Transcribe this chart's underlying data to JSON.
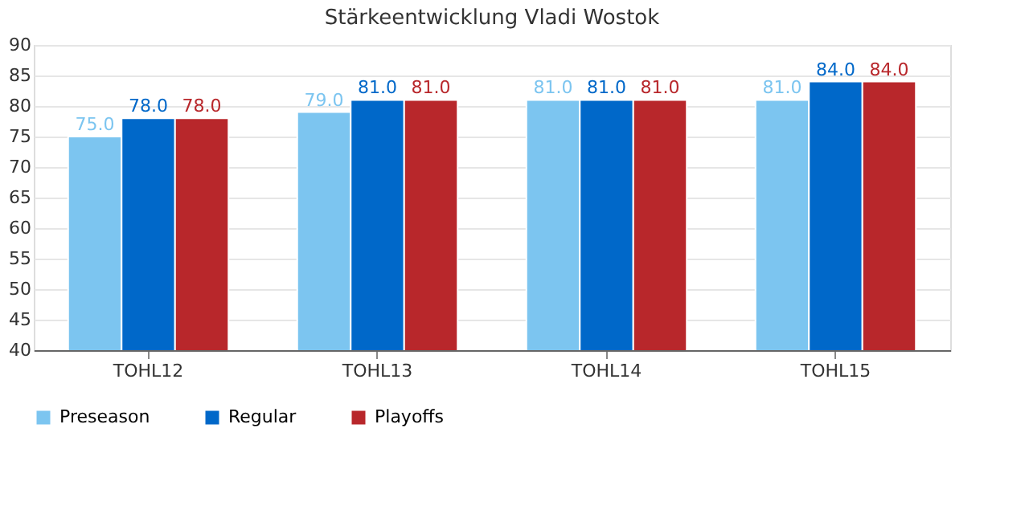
{
  "chart_data": {
    "type": "bar",
    "title": "Stärkeentwicklung Vladi Wostok",
    "categories": [
      "TOHL12",
      "TOHL13",
      "TOHL14",
      "TOHL15"
    ],
    "series": [
      {
        "name": "Preseason",
        "color": "#7cc5f0",
        "values": [
          75,
          79,
          81,
          81
        ],
        "value_labels": [
          "75.0",
          "79.0",
          "81.0",
          "81.0"
        ]
      },
      {
        "name": "Regular",
        "color": "#0068c9",
        "values": [
          78,
          81,
          81,
          84
        ],
        "value_labels": [
          "78.0",
          "81.0",
          "81.0",
          "84.0"
        ]
      },
      {
        "name": "Playoffs",
        "color": "#b8272b",
        "values": [
          78,
          81,
          81,
          84
        ],
        "value_labels": [
          "78.0",
          "81.0",
          "81.0",
          "84.0"
        ]
      }
    ],
    "ylim": [
      40,
      90
    ],
    "yticks": [
      40,
      45,
      50,
      55,
      60,
      65,
      70,
      75,
      80,
      85,
      90
    ],
    "grid": "y",
    "legend": "bottom"
  }
}
